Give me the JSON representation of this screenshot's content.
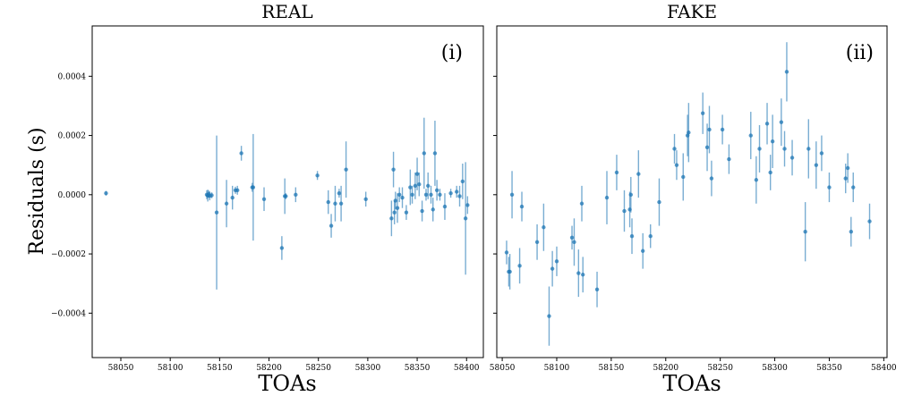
{
  "ylabel": "Residuals (s)",
  "y_ticks": [
    "0.0004",
    "0.0002",
    "0.0000",
    "−0.0002",
    "−0.0004"
  ],
  "chart_data": [
    {
      "type": "scatter",
      "title": "REAL",
      "annotation": "(i)",
      "xlabel": "TOAs",
      "ylabel": "Residuals (s)",
      "xlim": [
        58021,
        58417
      ],
      "ylim": [
        -0.00055,
        0.00057
      ],
      "x_ticks": [
        58050,
        58100,
        58150,
        58200,
        58250,
        58300,
        58350,
        58400
      ],
      "y_ticks": [
        -0.0004,
        -0.0002,
        0.0,
        0.0002,
        0.0004
      ],
      "color": "#1f77b4",
      "points": [
        {
          "x": 58035,
          "y": 5e-06,
          "err": 8e-06
        },
        {
          "x": 58137,
          "y": 0.0,
          "err": 1.5e-05
        },
        {
          "x": 58138,
          "y": -3e-06,
          "err": 2e-05
        },
        {
          "x": 58139,
          "y": 2e-06,
          "err": 1.2e-05
        },
        {
          "x": 58140,
          "y": -4e-06,
          "err": 1.5e-05
        },
        {
          "x": 58142,
          "y": -2e-06,
          "err": 1e-05
        },
        {
          "x": 58147,
          "y": -6e-05,
          "err": 0.00026
        },
        {
          "x": 58157,
          "y": -3e-05,
          "err": 8e-05
        },
        {
          "x": 58163,
          "y": -1e-05,
          "err": 4e-05
        },
        {
          "x": 58166,
          "y": 1.5e-05,
          "err": 1.2e-05
        },
        {
          "x": 58168,
          "y": 1.5e-05,
          "err": 1.5e-05
        },
        {
          "x": 58172,
          "y": 0.00014,
          "err": 2.5e-05
        },
        {
          "x": 58183,
          "y": 2.5e-05,
          "err": 1.5e-05
        },
        {
          "x": 58184,
          "y": 2.5e-05,
          "err": 0.00018
        },
        {
          "x": 58195,
          "y": -1.5e-05,
          "err": 4e-05
        },
        {
          "x": 58213,
          "y": -0.00018,
          "err": 4e-05
        },
        {
          "x": 58216,
          "y": -5e-06,
          "err": 6e-05
        },
        {
          "x": 58217,
          "y": -5e-06,
          "err": 1e-05
        },
        {
          "x": 58227,
          "y": 0.0,
          "err": 2.5e-05
        },
        {
          "x": 58249,
          "y": 6.5e-05,
          "err": 1.5e-05
        },
        {
          "x": 58260,
          "y": -2.5e-05,
          "err": 4e-05
        },
        {
          "x": 58263,
          "y": -0.000105,
          "err": 4e-05
        },
        {
          "x": 58267,
          "y": -3e-05,
          "err": 6e-05
        },
        {
          "x": 58271,
          "y": 5e-06,
          "err": 1.5e-05
        },
        {
          "x": 58273,
          "y": -3e-05,
          "err": 6e-05
        },
        {
          "x": 58278,
          "y": 8.5e-05,
          "err": 9.5e-05
        },
        {
          "x": 58298,
          "y": -1.5e-05,
          "err": 2.5e-05
        },
        {
          "x": 58324,
          "y": -8e-05,
          "err": 6e-05
        },
        {
          "x": 58326,
          "y": 8.5e-05,
          "err": 6e-05
        },
        {
          "x": 58327,
          "y": -6e-05,
          "err": 4e-05
        },
        {
          "x": 58328,
          "y": -2e-05,
          "err": 3e-05
        },
        {
          "x": 58330,
          "y": -4.5e-05,
          "err": 5e-05
        },
        {
          "x": 58332,
          "y": 0.0,
          "err": 2.5e-05
        },
        {
          "x": 58335,
          "y": -1e-05,
          "err": 3.5e-05
        },
        {
          "x": 58339,
          "y": -6e-05,
          "err": 2.5e-05
        },
        {
          "x": 58343,
          "y": 2.5e-05,
          "err": 6e-05
        },
        {
          "x": 58345,
          "y": 0.0,
          "err": 3e-05
        },
        {
          "x": 58348,
          "y": 3e-05,
          "err": 4.5e-05
        },
        {
          "x": 58350,
          "y": 7e-05,
          "err": 5.5e-05
        },
        {
          "x": 58352,
          "y": 3.5e-05,
          "err": 4e-05
        },
        {
          "x": 58355,
          "y": -5.5e-05,
          "err": 3.5e-05
        },
        {
          "x": 58357,
          "y": 0.00014,
          "err": 0.00012
        },
        {
          "x": 58359,
          "y": 0.0,
          "err": 2e-05
        },
        {
          "x": 58361,
          "y": 3e-05,
          "err": 4.5e-05
        },
        {
          "x": 58364,
          "y": 0.0,
          "err": 3e-05
        },
        {
          "x": 58366,
          "y": -5e-05,
          "err": 4e-05
        },
        {
          "x": 58368,
          "y": 0.00014,
          "err": 0.00011
        },
        {
          "x": 58370,
          "y": 1.5e-05,
          "err": 3.5e-05
        },
        {
          "x": 58373,
          "y": 0.0,
          "err": 2e-05
        },
        {
          "x": 58378,
          "y": -4e-05,
          "err": 4.5e-05
        },
        {
          "x": 58384,
          "y": 5e-06,
          "err": 1.5e-05
        },
        {
          "x": 58390,
          "y": 1e-05,
          "err": 2e-05
        },
        {
          "x": 58393,
          "y": -5e-06,
          "err": 3.5e-05
        },
        {
          "x": 58396,
          "y": 4.5e-05,
          "err": 6e-05
        },
        {
          "x": 58399,
          "y": -8e-05,
          "err": 0.00019
        },
        {
          "x": 58401,
          "y": -3.5e-05,
          "err": 3e-05
        }
      ]
    },
    {
      "type": "scatter",
      "title": "FAKE",
      "annotation": "(ii)",
      "xlabel": "TOAs",
      "ylabel": "",
      "xlim": [
        58045,
        58403
      ],
      "ylim": [
        -0.00055,
        0.00057
      ],
      "x_ticks": [
        58050,
        58100,
        58150,
        58200,
        58250,
        58300,
        58350,
        58400
      ],
      "y_ticks": [
        -0.0004,
        -0.0002,
        0.0,
        0.0002,
        0.0004
      ],
      "color": "#1f77b4",
      "points": [
        {
          "x": 58054,
          "y": -0.000195,
          "err": 4e-05
        },
        {
          "x": 58056,
          "y": -0.00026,
          "err": 5e-05
        },
        {
          "x": 58057,
          "y": -0.00026,
          "err": 6e-05
        },
        {
          "x": 58059,
          "y": 0.0,
          "err": 8e-05
        },
        {
          "x": 58066,
          "y": -0.00024,
          "err": 6e-05
        },
        {
          "x": 58068,
          "y": -4e-05,
          "err": 5e-05
        },
        {
          "x": 58082,
          "y": -0.00016,
          "err": 6e-05
        },
        {
          "x": 58088,
          "y": -0.00011,
          "err": 8e-05
        },
        {
          "x": 58093,
          "y": -0.00041,
          "err": 0.0001
        },
        {
          "x": 58096,
          "y": -0.00025,
          "err": 6e-05
        },
        {
          "x": 58100,
          "y": -0.000225,
          "err": 5e-05
        },
        {
          "x": 58114,
          "y": -0.000145,
          "err": 4e-05
        },
        {
          "x": 58116,
          "y": -0.00016,
          "err": 8e-05
        },
        {
          "x": 58120,
          "y": -0.000265,
          "err": 8e-05
        },
        {
          "x": 58123,
          "y": -3e-05,
          "err": 6e-05
        },
        {
          "x": 58124,
          "y": -0.00027,
          "err": 6e-05
        },
        {
          "x": 58137,
          "y": -0.00032,
          "err": 6e-05
        },
        {
          "x": 58146,
          "y": -1e-05,
          "err": 9e-05
        },
        {
          "x": 58155,
          "y": 7.5e-05,
          "err": 6e-05
        },
        {
          "x": 58162,
          "y": -5.5e-05,
          "err": 7e-05
        },
        {
          "x": 58167,
          "y": -5e-05,
          "err": 6e-05
        },
        {
          "x": 58168,
          "y": 0.0,
          "err": 6e-05
        },
        {
          "x": 58169,
          "y": -0.00014,
          "err": 6e-05
        },
        {
          "x": 58175,
          "y": 7e-05,
          "err": 8e-05
        },
        {
          "x": 58179,
          "y": -0.00019,
          "err": 6e-05
        },
        {
          "x": 58186,
          "y": -0.00014,
          "err": 4e-05
        },
        {
          "x": 58194,
          "y": -2.5e-05,
          "err": 8e-05
        },
        {
          "x": 58208,
          "y": 0.000155,
          "err": 5e-05
        },
        {
          "x": 58210,
          "y": 0.0001,
          "err": 5e-05
        },
        {
          "x": 58216,
          "y": 6e-05,
          "err": 8e-05
        },
        {
          "x": 58220,
          "y": 0.0002,
          "err": 7e-05
        },
        {
          "x": 58221,
          "y": 0.00021,
          "err": 0.0001
        },
        {
          "x": 58234,
          "y": 0.000275,
          "err": 7e-05
        },
        {
          "x": 58238,
          "y": 0.00016,
          "err": 8e-05
        },
        {
          "x": 58240,
          "y": 0.00022,
          "err": 8e-05
        },
        {
          "x": 58242,
          "y": 5.5e-05,
          "err": 6e-05
        },
        {
          "x": 58252,
          "y": 0.00022,
          "err": 5e-05
        },
        {
          "x": 58258,
          "y": 0.00012,
          "err": 5e-05
        },
        {
          "x": 58278,
          "y": 0.0002,
          "err": 8e-05
        },
        {
          "x": 58283,
          "y": 5e-05,
          "err": 8e-05
        },
        {
          "x": 58286,
          "y": 0.000155,
          "err": 8e-05
        },
        {
          "x": 58293,
          "y": 0.00024,
          "err": 7e-05
        },
        {
          "x": 58296,
          "y": 7.5e-05,
          "err": 6e-05
        },
        {
          "x": 58298,
          "y": 0.00018,
          "err": 9e-05
        },
        {
          "x": 58306,
          "y": 0.000245,
          "err": 8e-05
        },
        {
          "x": 58309,
          "y": 0.000155,
          "err": 6e-05
        },
        {
          "x": 58311,
          "y": 0.000415,
          "err": 0.0001
        },
        {
          "x": 58316,
          "y": 0.000125,
          "err": 6e-05
        },
        {
          "x": 58328,
          "y": -0.000125,
          "err": 0.0001
        },
        {
          "x": 58331,
          "y": 0.000155,
          "err": 0.0001
        },
        {
          "x": 58338,
          "y": 0.0001,
          "err": 8e-05
        },
        {
          "x": 58343,
          "y": 0.00014,
          "err": 6e-05
        },
        {
          "x": 58350,
          "y": 2.5e-05,
          "err": 5e-05
        },
        {
          "x": 58365,
          "y": 5.5e-05,
          "err": 5e-05
        },
        {
          "x": 58367,
          "y": 9e-05,
          "err": 5e-05
        },
        {
          "x": 58370,
          "y": -0.000125,
          "err": 5e-05
        },
        {
          "x": 58372,
          "y": 2.5e-05,
          "err": 5e-05
        },
        {
          "x": 58387,
          "y": -9e-05,
          "err": 6e-05
        }
      ]
    }
  ]
}
